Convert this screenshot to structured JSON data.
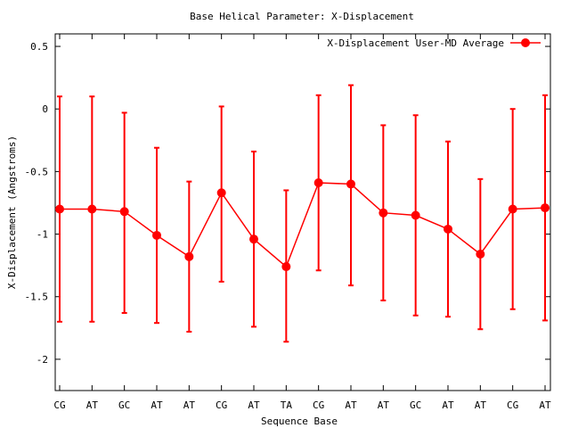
{
  "chart_data": {
    "type": "line",
    "title": "Base  Helical Parameter: X-Displacement",
    "xlabel": "Sequence Base",
    "ylabel": "X-Displacement (Angstroms)",
    "ylim": [
      -2.25,
      0.6
    ],
    "yticks": [
      0.5,
      0,
      -0.5,
      -1,
      -1.5,
      -2
    ],
    "ytick_labels": [
      "0.5",
      "0",
      "-0.5",
      "-1",
      "-1.5",
      "-2"
    ],
    "categories": [
      "CG",
      "AT",
      "GC",
      "AT",
      "AT",
      "CG",
      "AT",
      "TA",
      "CG",
      "AT",
      "AT",
      "GC",
      "AT",
      "AT",
      "CG",
      "AT"
    ],
    "grid": false,
    "legend_position": "top-right",
    "series": [
      {
        "name": "X-Displacement User-MD Average",
        "color": "#ff0000",
        "values": [
          -0.8,
          -0.8,
          -0.82,
          -1.01,
          -1.18,
          -0.67,
          -1.04,
          -1.26,
          -0.59,
          -0.6,
          -0.83,
          -0.85,
          -0.96,
          -1.16,
          -0.8,
          -0.79
        ],
        "error_low": [
          -1.7,
          -1.7,
          -1.63,
          -1.71,
          -1.78,
          -1.38,
          -1.74,
          -1.86,
          -1.29,
          -1.41,
          -1.53,
          -1.65,
          -1.66,
          -1.76,
          -1.6,
          -1.69
        ],
        "error_high": [
          0.1,
          0.1,
          -0.03,
          -0.31,
          -0.58,
          0.02,
          -0.34,
          -0.65,
          0.11,
          0.19,
          -0.13,
          -0.05,
          -0.26,
          -0.56,
          0.0,
          0.11
        ]
      }
    ]
  }
}
